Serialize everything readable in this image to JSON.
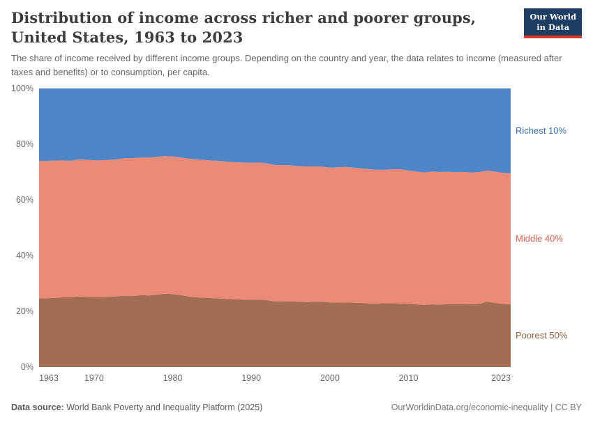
{
  "header": {
    "title": "Distribution of income across richer and poorer groups, United States, 1963 to 2023",
    "subtitle": "The share of income received by different income groups. Depending on the country and year, the data relates to income (measured after taxes and benefits) or to consumption, per capita.",
    "logo": {
      "line1": "Our World",
      "line2": "in Data"
    }
  },
  "footer": {
    "datasource_label": "Data source:",
    "datasource_value": " World Bank Poverty and Inequality Platform (2025)",
    "right_text": "OurWorldinData.org/economic-inequality | CC BY"
  },
  "colors": {
    "logo_bg": "#1d3d63",
    "logo_accent": "#e0362c",
    "title_text": "#3d3d3d",
    "subtitle_text": "#636363",
    "axis_text": "#666666"
  },
  "chart_data": {
    "type": "area",
    "stacked": true,
    "title": "Distribution of income across richer and poorer groups, United States, 1963 to 2023",
    "xlabel": "",
    "ylabel": "",
    "ylim": [
      0,
      100
    ],
    "grid": false,
    "legend_position": "right-edge-labels",
    "yticks": [
      "0%",
      "20%",
      "40%",
      "60%",
      "80%",
      "100%"
    ],
    "ytick_values": [
      0,
      20,
      40,
      60,
      80,
      100
    ],
    "xticks": [
      1963,
      1970,
      1980,
      1990,
      2000,
      2010,
      2023
    ],
    "x": [
      1963,
      1964,
      1965,
      1966,
      1967,
      1968,
      1969,
      1970,
      1971,
      1972,
      1973,
      1974,
      1975,
      1976,
      1977,
      1978,
      1979,
      1980,
      1981,
      1982,
      1983,
      1984,
      1985,
      1986,
      1987,
      1988,
      1989,
      1990,
      1991,
      1992,
      1993,
      1994,
      1995,
      1996,
      1997,
      1998,
      1999,
      2000,
      2001,
      2002,
      2003,
      2004,
      2005,
      2006,
      2007,
      2008,
      2009,
      2010,
      2011,
      2012,
      2013,
      2014,
      2015,
      2016,
      2017,
      2018,
      2019,
      2020,
      2021,
      2022,
      2023
    ],
    "series": [
      {
        "name": "Poorest 50%",
        "color": "#a26d53",
        "label_color": "#8f5e3e",
        "values": [
          24.6,
          24.7,
          24.8,
          25.0,
          25.0,
          25.3,
          25.2,
          25.0,
          25.0,
          25.2,
          25.4,
          25.6,
          25.5,
          25.8,
          25.7,
          26.0,
          26.3,
          26.2,
          25.8,
          25.3,
          25.0,
          24.9,
          24.7,
          24.6,
          24.4,
          24.3,
          24.2,
          24.2,
          24.2,
          24.0,
          23.5,
          23.5,
          23.6,
          23.4,
          23.3,
          23.4,
          23.4,
          23.2,
          23.1,
          23.2,
          23.1,
          23.0,
          22.8,
          22.8,
          22.9,
          22.9,
          22.8,
          22.7,
          22.5,
          22.3,
          22.5,
          22.4,
          22.6,
          22.5,
          22.6,
          22.5,
          22.6,
          23.5,
          23.0,
          22.6,
          22.5
        ]
      },
      {
        "name": "Middle 40%",
        "color": "#ec8a78",
        "label_color": "#d4604c",
        "values": [
          49.4,
          49.3,
          49.3,
          49.2,
          49.0,
          49.2,
          49.2,
          49.2,
          49.2,
          49.2,
          49.2,
          49.4,
          49.5,
          49.4,
          49.5,
          49.5,
          49.4,
          49.4,
          49.4,
          49.5,
          49.5,
          49.4,
          49.4,
          49.4,
          49.3,
          49.2,
          49.2,
          49.1,
          49.2,
          49.1,
          49.0,
          49.0,
          48.8,
          48.7,
          48.7,
          48.6,
          48.5,
          48.4,
          48.6,
          48.6,
          48.5,
          48.3,
          48.2,
          48.0,
          47.9,
          48.1,
          48.2,
          47.8,
          47.7,
          47.5,
          47.7,
          47.6,
          47.5,
          47.4,
          47.4,
          47.3,
          47.4,
          47.0,
          47.2,
          47.1,
          47.1
        ]
      },
      {
        "name": "Richest 10%",
        "color": "#4f85c6",
        "label_color": "#3573af",
        "values": [
          26.0,
          26.0,
          25.9,
          25.8,
          26.0,
          25.5,
          25.6,
          25.8,
          25.8,
          25.6,
          25.4,
          25.0,
          25.0,
          24.8,
          24.8,
          24.5,
          24.3,
          24.4,
          24.8,
          25.2,
          25.5,
          25.7,
          25.9,
          26.0,
          26.3,
          26.5,
          26.6,
          26.7,
          26.6,
          26.9,
          27.5,
          27.5,
          27.6,
          27.9,
          28.0,
          28.0,
          28.1,
          28.4,
          28.3,
          28.2,
          28.4,
          28.7,
          29.0,
          29.2,
          29.2,
          29.0,
          29.0,
          29.5,
          29.8,
          30.2,
          29.8,
          30.0,
          29.9,
          30.1,
          30.0,
          30.2,
          30.0,
          29.5,
          29.8,
          30.3,
          30.4
        ]
      }
    ]
  }
}
